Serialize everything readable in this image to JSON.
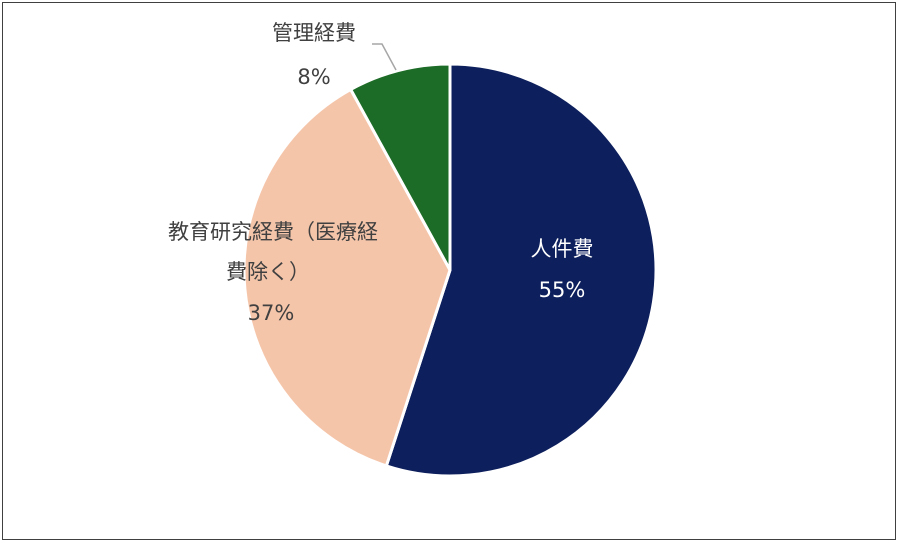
{
  "chart_data": {
    "type": "pie",
    "title": "",
    "slices": [
      {
        "label": "人件費",
        "value": 55,
        "value_label": "55%",
        "color": "#0d1f5c"
      },
      {
        "label": "教育研究経費（医療経費除く）",
        "label_lines": [
          "教育研究経費（医療経",
          "費除く）"
        ],
        "value": 37,
        "value_label": "37%",
        "color": "#f5c5aa"
      },
      {
        "label": "管理経費",
        "value": 8,
        "value_label": "8%",
        "color": "#1c6b26"
      }
    ],
    "start_angle": "12 o'clock",
    "direction": "clockwise",
    "legend": "none"
  }
}
